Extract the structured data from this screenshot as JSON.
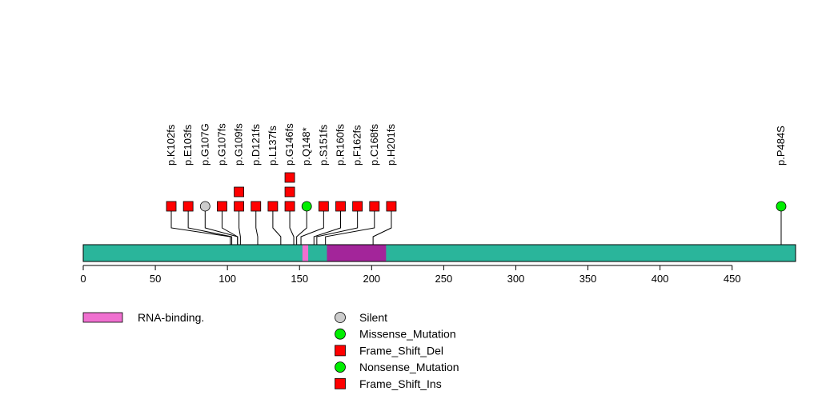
{
  "chart_data": {
    "type": "lollipop",
    "xlim": [
      0,
      494
    ],
    "ticks": [
      0,
      50,
      100,
      150,
      200,
      250,
      300,
      350,
      400,
      450
    ],
    "protein_color": "#2ab59b",
    "domains": [
      {
        "name": "RNA-binding.",
        "start": 152,
        "end": 156,
        "color": "#f070d0",
        "in_legend": true
      },
      {
        "name": "",
        "start": 169,
        "end": 210,
        "color": "#a3259a",
        "in_legend": false
      }
    ],
    "mutations": [
      {
        "label": "p.K102fs",
        "position": 102,
        "count": 1,
        "shape": "square",
        "color": "#ff0000"
      },
      {
        "label": "p.E103fs",
        "position": 103,
        "count": 1,
        "shape": "square",
        "color": "#ff0000"
      },
      {
        "label": "p.G107G",
        "position": 107,
        "count": 1,
        "shape": "circle",
        "color": "#cccccc"
      },
      {
        "label": "p.G107fs",
        "position": 107,
        "count": 1,
        "shape": "square",
        "color": "#ff0000"
      },
      {
        "label": "p.G109fs",
        "position": 109,
        "count": 2,
        "shape": "square",
        "color": "#ff0000"
      },
      {
        "label": "p.D121fs",
        "position": 121,
        "count": 1,
        "shape": "square",
        "color": "#ff0000"
      },
      {
        "label": "p.L137fs",
        "position": 137,
        "count": 1,
        "shape": "square",
        "color": "#ff0000"
      },
      {
        "label": "p.G146fs",
        "position": 146,
        "count": 3,
        "shape": "square",
        "color": "#ff0000"
      },
      {
        "label": "p.Q148*",
        "position": 148,
        "count": 1,
        "shape": "circle",
        "color": "#00ee00"
      },
      {
        "label": "p.S151fs",
        "position": 151,
        "count": 1,
        "shape": "square",
        "color": "#ff0000"
      },
      {
        "label": "p.R160fs",
        "position": 160,
        "count": 1,
        "shape": "square",
        "color": "#ff0000"
      },
      {
        "label": "p.F162fs",
        "position": 162,
        "count": 1,
        "shape": "square",
        "color": "#ff0000"
      },
      {
        "label": "p.C168fs",
        "position": 168,
        "count": 1,
        "shape": "square",
        "color": "#ff0000"
      },
      {
        "label": "p.H201fs",
        "position": 201,
        "count": 1,
        "shape": "square",
        "color": "#ff0000"
      },
      {
        "label": "p.P484S",
        "position": 484,
        "count": 1,
        "shape": "circle",
        "color": "#00ee00"
      }
    ],
    "legend_domains": [
      {
        "label": "RNA-binding.",
        "color": "#f070d0"
      }
    ],
    "legend_mutations": [
      {
        "label": "Silent",
        "shape": "circle",
        "color": "#cccccc"
      },
      {
        "label": "Missense_Mutation",
        "shape": "circle",
        "color": "#00ee00"
      },
      {
        "label": "Frame_Shift_Del",
        "shape": "square",
        "color": "#ff0000"
      },
      {
        "label": "Nonsense_Mutation",
        "shape": "circle",
        "color": "#00ee00"
      },
      {
        "label": "Frame_Shift_Ins",
        "shape": "square",
        "color": "#ff0000"
      }
    ]
  }
}
